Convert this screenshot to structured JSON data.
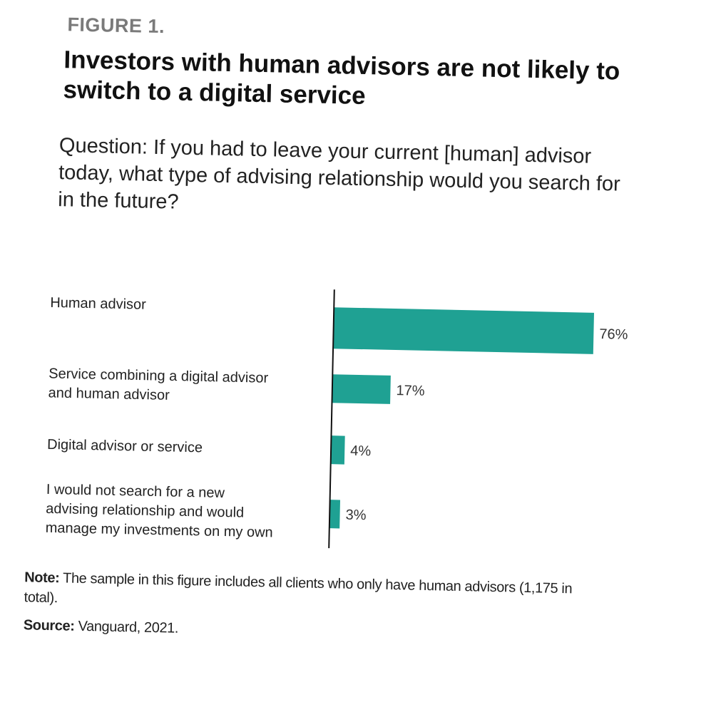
{
  "figure_label": "FIGURE 1.",
  "title": "Investors with human advisors are not likely to switch to a digital service",
  "question": "Question: If you had to leave your current [human] advisor today, what type of advising relationship would you search for in the future?",
  "note_label": "Note:",
  "note_text": " The sample in this figure includes all clients who only have human advisors (1,175 in total).",
  "source_label": "Source:",
  "source_text": " Vanguard, 2021.",
  "colors": {
    "bar": "#1fa193",
    "axis": "#111111"
  },
  "chart_data": {
    "type": "bar",
    "orientation": "horizontal",
    "categories": [
      [
        "Human advisor"
      ],
      [
        "Service combining a digital advisor",
        "and human advisor"
      ],
      [
        "Digital advisor or service"
      ],
      [
        "I would not search for a new",
        "advising relationship and would",
        "manage my investments on my own"
      ]
    ],
    "values": [
      76,
      17,
      4,
      3
    ],
    "value_labels": [
      "76%",
      "17%",
      "4%",
      "3%"
    ],
    "xlim": [
      0,
      100
    ],
    "grid": false,
    "legend": "none"
  }
}
